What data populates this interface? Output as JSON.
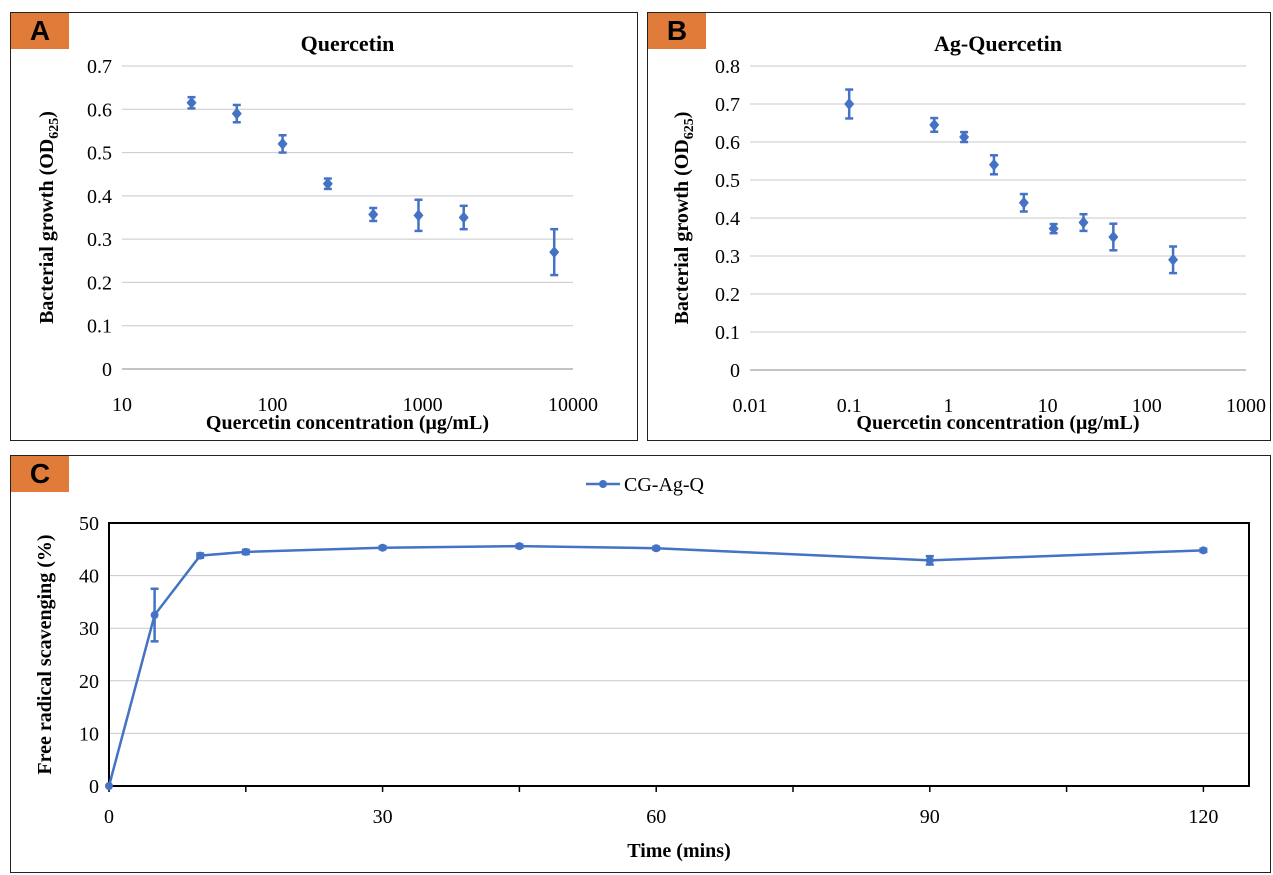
{
  "panels": [
    {
      "label": "A"
    },
    {
      "label": "B"
    },
    {
      "label": "C"
    }
  ],
  "colors": {
    "series": "#4472C4",
    "grid": "#C8C8C8",
    "label_bg": "#E07B39"
  },
  "chart_data": [
    {
      "type": "scatter",
      "title": "Quercetin",
      "xlabel": "Quercetin concentration (μg/mL)",
      "ylabel": "Bacterial growth (OD",
      "ylabel_sub": "625",
      "ylabel_end": ")",
      "x_scale": "log",
      "xlim": [
        10,
        10000
      ],
      "ylim": [
        0,
        0.7
      ],
      "x_ticks": [
        10,
        100,
        1000,
        10000
      ],
      "x_tick_labels": [
        "10",
        "100",
        "1000",
        "10000"
      ],
      "y_ticks": [
        0,
        0.1,
        0.2,
        0.3,
        0.4,
        0.5,
        0.6,
        0.7
      ],
      "y_tick_labels": [
        "0",
        "0.1",
        "0.2",
        "0.3",
        "0.4",
        "0.5",
        "0.6",
        "0.7"
      ],
      "grid": true,
      "points": [
        {
          "x": 29,
          "y": 0.615,
          "err": 0.013
        },
        {
          "x": 58,
          "y": 0.59,
          "err": 0.02
        },
        {
          "x": 117,
          "y": 0.52,
          "err": 0.02
        },
        {
          "x": 234,
          "y": 0.428,
          "err": 0.012
        },
        {
          "x": 469,
          "y": 0.357,
          "err": 0.015
        },
        {
          "x": 938,
          "y": 0.355,
          "err": 0.036
        },
        {
          "x": 1875,
          "y": 0.35,
          "err": 0.027
        },
        {
          "x": 7500,
          "y": 0.27,
          "err": 0.053
        }
      ]
    },
    {
      "type": "scatter",
      "title": "Ag-Quercetin",
      "xlabel": "Quercetin concentration (μg/mL)",
      "ylabel": "Bacterial growth (OD",
      "ylabel_sub": "625",
      "ylabel_end": ")",
      "x_scale": "log",
      "xlim": [
        0.01,
        1000
      ],
      "ylim": [
        0,
        0.8
      ],
      "x_ticks": [
        0.01,
        0.1,
        1,
        10,
        100,
        1000
      ],
      "x_tick_labels": [
        "0.01",
        "0.1",
        "1",
        "10",
        "100",
        "1000"
      ],
      "y_ticks": [
        0,
        0.1,
        0.2,
        0.3,
        0.4,
        0.5,
        0.6,
        0.7,
        0.8
      ],
      "y_tick_labels": [
        "0",
        "0.1",
        "0.2",
        "0.3",
        "0.4",
        "0.5",
        "0.6",
        "0.7",
        "0.8"
      ],
      "grid": true,
      "points": [
        {
          "x": 0.1,
          "y": 0.7,
          "err": 0.038
        },
        {
          "x": 0.72,
          "y": 0.645,
          "err": 0.018
        },
        {
          "x": 1.44,
          "y": 0.613,
          "err": 0.013
        },
        {
          "x": 2.88,
          "y": 0.54,
          "err": 0.025
        },
        {
          "x": 5.76,
          "y": 0.44,
          "err": 0.023
        },
        {
          "x": 11.5,
          "y": 0.372,
          "err": 0.012
        },
        {
          "x": 23,
          "y": 0.388,
          "err": 0.022
        },
        {
          "x": 46,
          "y": 0.35,
          "err": 0.035
        },
        {
          "x": 184,
          "y": 0.29,
          "err": 0.035
        }
      ]
    },
    {
      "type": "line",
      "title": "",
      "xlabel": "Time (mins)",
      "ylabel": "Free radical scavenging (%)",
      "xlim": [
        0,
        125
      ],
      "ylim": [
        0,
        50
      ],
      "x_ticks": [
        0,
        30,
        60,
        90,
        120
      ],
      "x_tick_labels": [
        "0",
        "30",
        "60",
        "90",
        "120"
      ],
      "x_minor_ticks": [
        0,
        15,
        30,
        45,
        60,
        75,
        90,
        105,
        120
      ],
      "y_ticks": [
        0,
        10,
        20,
        30,
        40,
        50
      ],
      "y_tick_labels": [
        "0",
        "10",
        "20",
        "30",
        "40",
        "50"
      ],
      "grid": true,
      "legend_position": "top-center",
      "series": [
        {
          "name": "CG-Ag-Q",
          "points": [
            {
              "x": 0,
              "y": 0,
              "err": 0
            },
            {
              "x": 5,
              "y": 32.5,
              "err": 5
            },
            {
              "x": 10,
              "y": 43.8,
              "err": 0.4
            },
            {
              "x": 15,
              "y": 44.5,
              "err": 0.4
            },
            {
              "x": 30,
              "y": 45.3,
              "err": 0.3
            },
            {
              "x": 45,
              "y": 45.6,
              "err": 0.3
            },
            {
              "x": 60,
              "y": 45.2,
              "err": 0.3
            },
            {
              "x": 90,
              "y": 42.9,
              "err": 0.8
            },
            {
              "x": 120,
              "y": 44.8,
              "err": 0.3
            }
          ]
        }
      ]
    }
  ]
}
